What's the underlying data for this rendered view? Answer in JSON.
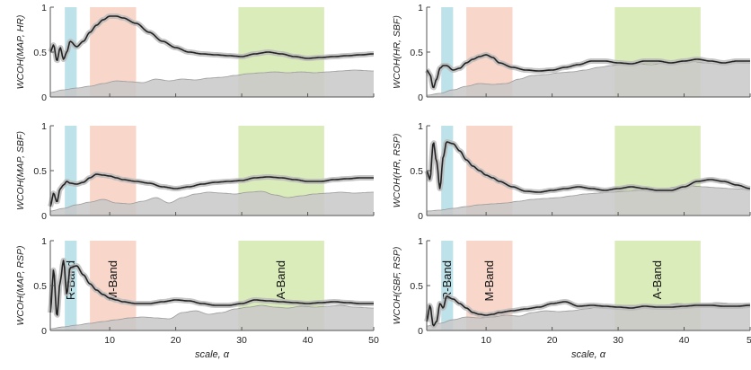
{
  "chart_data": {
    "type": "line",
    "xlabel": "scale, α",
    "x_ticks": [
      10,
      20,
      30,
      40,
      50
    ],
    "x_tick_labels": [
      "10",
      "20",
      "30",
      "40",
      "50"
    ],
    "y_ticks": [
      0,
      0.5,
      1
    ],
    "y_tick_labels": [
      "0",
      "0.5",
      "1"
    ],
    "xlim": [
      1,
      50
    ],
    "ylim": [
      0,
      1
    ],
    "grid": false,
    "colors": {
      "main_line": "#222222",
      "confidence": "#b8b8b8",
      "surrogate_fill": "#c8c8c8",
      "surrogate_line": "#9a9a9a",
      "r_band": "#a8d8e2",
      "m_band": "#f6c9b8",
      "a_band": "#cfe6a4"
    },
    "bands": [
      {
        "label": "R-Band",
        "range": [
          3.2,
          5
        ],
        "color": "#a8d8e2"
      },
      {
        "label": "M-Band",
        "range": [
          7,
          14
        ],
        "color": "#f6c9b8"
      },
      {
        "label": "A-Band",
        "range": [
          29.5,
          42.5
        ],
        "color": "#cfe6a4"
      }
    ],
    "panels": [
      {
        "ylabel": "WCOH(MAP, HR)",
        "show_band_labels": false,
        "show_xlabel": false,
        "show_last_tick": true,
        "series": [
          {
            "role": "wcoh",
            "x": [
              1,
              1.5,
              2,
              2.5,
              3,
              3.5,
              4,
              5,
              6,
              7,
              8,
              9,
              10,
              11,
              12,
              14,
              16,
              18,
              20,
              22,
              24,
              26,
              28,
              30,
              32,
              34,
              36,
              38,
              40,
              42,
              44,
              46,
              48,
              50
            ],
            "y": [
              0.5,
              0.58,
              0.4,
              0.55,
              0.42,
              0.5,
              0.62,
              0.56,
              0.62,
              0.72,
              0.8,
              0.86,
              0.9,
              0.9,
              0.88,
              0.82,
              0.72,
              0.62,
              0.55,
              0.5,
              0.48,
              0.47,
              0.46,
              0.45,
              0.48,
              0.5,
              0.48,
              0.45,
              0.43,
              0.44,
              0.45,
              0.46,
              0.47,
              0.48
            ]
          },
          {
            "role": "surrogate",
            "x": [
              1,
              3,
              5,
              7,
              9,
              11,
              13,
              15,
              17,
              19,
              21,
              23,
              25,
              27,
              29,
              31,
              33,
              35,
              37,
              39,
              41,
              43,
              45,
              47,
              50
            ],
            "y": [
              0.05,
              0.08,
              0.1,
              0.12,
              0.15,
              0.18,
              0.17,
              0.16,
              0.2,
              0.18,
              0.2,
              0.19,
              0.21,
              0.22,
              0.24,
              0.26,
              0.27,
              0.28,
              0.27,
              0.28,
              0.27,
              0.28,
              0.29,
              0.3,
              0.29
            ]
          }
        ]
      },
      {
        "ylabel": "WCOH(HR, SBF)",
        "show_band_labels": false,
        "show_xlabel": false,
        "show_last_tick": false,
        "series": [
          {
            "role": "wcoh",
            "x": [
              1,
              1.5,
              2,
              2.5,
              3,
              3.5,
              4,
              5,
              6,
              7,
              8,
              9,
              10,
              11,
              12,
              14,
              16,
              18,
              20,
              22,
              24,
              26,
              28,
              30,
              32,
              34,
              36,
              38,
              40,
              42,
              44,
              46,
              48,
              50
            ],
            "y": [
              0.3,
              0.25,
              0.1,
              0.2,
              0.32,
              0.35,
              0.35,
              0.3,
              0.32,
              0.38,
              0.42,
              0.45,
              0.47,
              0.44,
              0.38,
              0.33,
              0.3,
              0.29,
              0.3,
              0.33,
              0.36,
              0.4,
              0.4,
              0.38,
              0.37,
              0.4,
              0.4,
              0.38,
              0.4,
              0.42,
              0.4,
              0.38,
              0.4,
              0.4
            ]
          },
          {
            "role": "surrogate",
            "x": [
              1,
              3,
              5,
              7,
              9,
              11,
              13,
              15,
              17,
              19,
              21,
              23,
              25,
              27,
              29,
              31,
              33,
              35,
              37,
              39,
              41,
              43,
              45,
              47,
              50
            ],
            "y": [
              0.02,
              0.04,
              0.08,
              0.12,
              0.15,
              0.14,
              0.15,
              0.2,
              0.24,
              0.25,
              0.27,
              0.28,
              0.3,
              0.33,
              0.35,
              0.37,
              0.37,
              0.36,
              0.38,
              0.39,
              0.4,
              0.38,
              0.37,
              0.39,
              0.38
            ]
          }
        ]
      },
      {
        "ylabel": "WCOH(MAP, SBF)",
        "show_band_labels": false,
        "show_xlabel": false,
        "show_last_tick": true,
        "series": [
          {
            "role": "wcoh",
            "x": [
              1,
              1.5,
              2,
              2.5,
              3,
              3.5,
              4,
              5,
              6,
              7,
              8,
              9,
              10,
              11,
              12,
              14,
              16,
              18,
              20,
              22,
              24,
              26,
              28,
              30,
              32,
              34,
              36,
              38,
              40,
              42,
              44,
              46,
              48,
              50
            ],
            "y": [
              0.1,
              0.25,
              0.15,
              0.3,
              0.34,
              0.38,
              0.36,
              0.35,
              0.37,
              0.42,
              0.46,
              0.45,
              0.44,
              0.42,
              0.4,
              0.38,
              0.36,
              0.32,
              0.3,
              0.32,
              0.35,
              0.37,
              0.38,
              0.39,
              0.42,
              0.43,
              0.42,
              0.4,
              0.38,
              0.38,
              0.4,
              0.41,
              0.42,
              0.42
            ]
          },
          {
            "role": "surrogate",
            "x": [
              1,
              3,
              5,
              7,
              9,
              11,
              13,
              15,
              17,
              19,
              21,
              23,
              25,
              27,
              29,
              31,
              33,
              35,
              37,
              39,
              41,
              43,
              45,
              47,
              50
            ],
            "y": [
              0.05,
              0.08,
              0.12,
              0.15,
              0.18,
              0.14,
              0.13,
              0.16,
              0.2,
              0.14,
              0.2,
              0.24,
              0.26,
              0.25,
              0.24,
              0.26,
              0.27,
              0.23,
              0.2,
              0.22,
              0.24,
              0.25,
              0.26,
              0.25,
              0.26
            ]
          }
        ]
      },
      {
        "ylabel": "WCOH(HR, RSP)",
        "show_band_labels": false,
        "show_xlabel": false,
        "show_last_tick": false,
        "series": [
          {
            "role": "wcoh",
            "x": [
              1,
              1.5,
              2,
              2.5,
              3,
              3.5,
              4,
              5,
              6,
              7,
              8,
              9,
              10,
              11,
              12,
              14,
              16,
              18,
              20,
              22,
              24,
              26,
              28,
              30,
              32,
              34,
              36,
              38,
              40,
              42,
              44,
              46,
              48,
              50
            ],
            "y": [
              0.5,
              0.4,
              0.82,
              0.6,
              0.3,
              0.65,
              0.82,
              0.8,
              0.72,
              0.62,
              0.55,
              0.5,
              0.45,
              0.42,
              0.38,
              0.32,
              0.27,
              0.26,
              0.28,
              0.3,
              0.32,
              0.3,
              0.28,
              0.3,
              0.32,
              0.3,
              0.28,
              0.28,
              0.32,
              0.38,
              0.4,
              0.38,
              0.34,
              0.3
            ]
          },
          {
            "role": "surrogate",
            "x": [
              1,
              3,
              5,
              7,
              9,
              11,
              13,
              15,
              17,
              19,
              21,
              23,
              25,
              27,
              29,
              31,
              33,
              35,
              37,
              39,
              41,
              43,
              45,
              47,
              50
            ],
            "y": [
              0.05,
              0.06,
              0.08,
              0.1,
              0.12,
              0.13,
              0.14,
              0.16,
              0.18,
              0.19,
              0.2,
              0.22,
              0.24,
              0.25,
              0.26,
              0.27,
              0.28,
              0.28,
              0.3,
              0.32,
              0.33,
              0.32,
              0.31,
              0.3,
              0.29
            ]
          }
        ]
      },
      {
        "ylabel": "WCOH(MAP, RSP)",
        "show_band_labels": true,
        "show_xlabel": true,
        "show_last_tick": true,
        "series": [
          {
            "role": "wcoh",
            "x": [
              1,
              1.5,
              2,
              2.5,
              3,
              3.5,
              4,
              5,
              6,
              7,
              8,
              9,
              10,
              11,
              12,
              14,
              16,
              18,
              20,
              22,
              24,
              26,
              28,
              30,
              32,
              34,
              36,
              38,
              40,
              42,
              44,
              46,
              48,
              50
            ],
            "y": [
              0.2,
              0.68,
              0.15,
              0.55,
              0.78,
              0.4,
              0.7,
              0.72,
              0.62,
              0.52,
              0.45,
              0.4,
              0.36,
              0.34,
              0.32,
              0.3,
              0.3,
              0.32,
              0.34,
              0.33,
              0.3,
              0.28,
              0.28,
              0.3,
              0.34,
              0.33,
              0.32,
              0.31,
              0.3,
              0.31,
              0.32,
              0.31,
              0.3,
              0.3
            ]
          },
          {
            "role": "surrogate",
            "x": [
              1,
              3,
              5,
              7,
              9,
              11,
              13,
              15,
              17,
              19,
              21,
              23,
              25,
              27,
              29,
              31,
              33,
              35,
              37,
              39,
              41,
              43,
              45,
              47,
              50
            ],
            "y": [
              0.02,
              0.04,
              0.06,
              0.08,
              0.1,
              0.12,
              0.14,
              0.15,
              0.14,
              0.13,
              0.2,
              0.22,
              0.18,
              0.2,
              0.24,
              0.26,
              0.28,
              0.26,
              0.25,
              0.27,
              0.26,
              0.27,
              0.28,
              0.26,
              0.25
            ]
          }
        ]
      },
      {
        "ylabel": "WCOH(SBF, RSP)",
        "show_band_labels": true,
        "show_xlabel": true,
        "show_last_tick": false,
        "series": [
          {
            "role": "wcoh",
            "x": [
              1,
              1.5,
              2,
              2.5,
              3,
              3.5,
              4,
              5,
              6,
              7,
              8,
              9,
              10,
              11,
              12,
              14,
              16,
              18,
              20,
              22,
              24,
              26,
              28,
              30,
              32,
              34,
              36,
              38,
              40,
              42,
              44,
              46,
              48,
              50
            ],
            "y": [
              0.1,
              0.28,
              0.05,
              0.1,
              0.3,
              0.25,
              0.38,
              0.35,
              0.3,
              0.25,
              0.2,
              0.18,
              0.17,
              0.18,
              0.2,
              0.22,
              0.24,
              0.26,
              0.3,
              0.32,
              0.27,
              0.28,
              0.27,
              0.26,
              0.25,
              0.27,
              0.26,
              0.26,
              0.27,
              0.28,
              0.28,
              0.27,
              0.27,
              0.28
            ]
          },
          {
            "role": "surrogate",
            "x": [
              1,
              3,
              5,
              7,
              9,
              11,
              13,
              15,
              17,
              19,
              21,
              23,
              25,
              27,
              29,
              31,
              33,
              35,
              37,
              39,
              41,
              43,
              45,
              47,
              50
            ],
            "y": [
              0.05,
              0.08,
              0.12,
              0.15,
              0.14,
              0.15,
              0.17,
              0.16,
              0.2,
              0.22,
              0.21,
              0.22,
              0.24,
              0.26,
              0.27,
              0.28,
              0.28,
              0.27,
              0.28,
              0.3,
              0.29,
              0.3,
              0.31,
              0.3,
              0.3
            ]
          }
        ]
      }
    ]
  }
}
